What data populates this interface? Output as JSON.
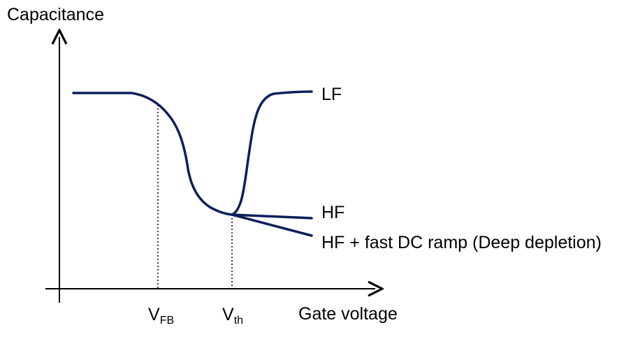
{
  "axes": {
    "y_label": "Capacitance",
    "x_label": "Gate voltage"
  },
  "markers": {
    "vfb": {
      "main": "V",
      "sub": "FB"
    },
    "vth": {
      "main": "V",
      "sub": "th"
    }
  },
  "curves": {
    "lf": "LF",
    "hf": "HF",
    "deep_depletion": "HF + fast DC ramp (Deep depletion)"
  },
  "colors": {
    "curve": "#0d1f5c",
    "axis": "#000000"
  }
}
